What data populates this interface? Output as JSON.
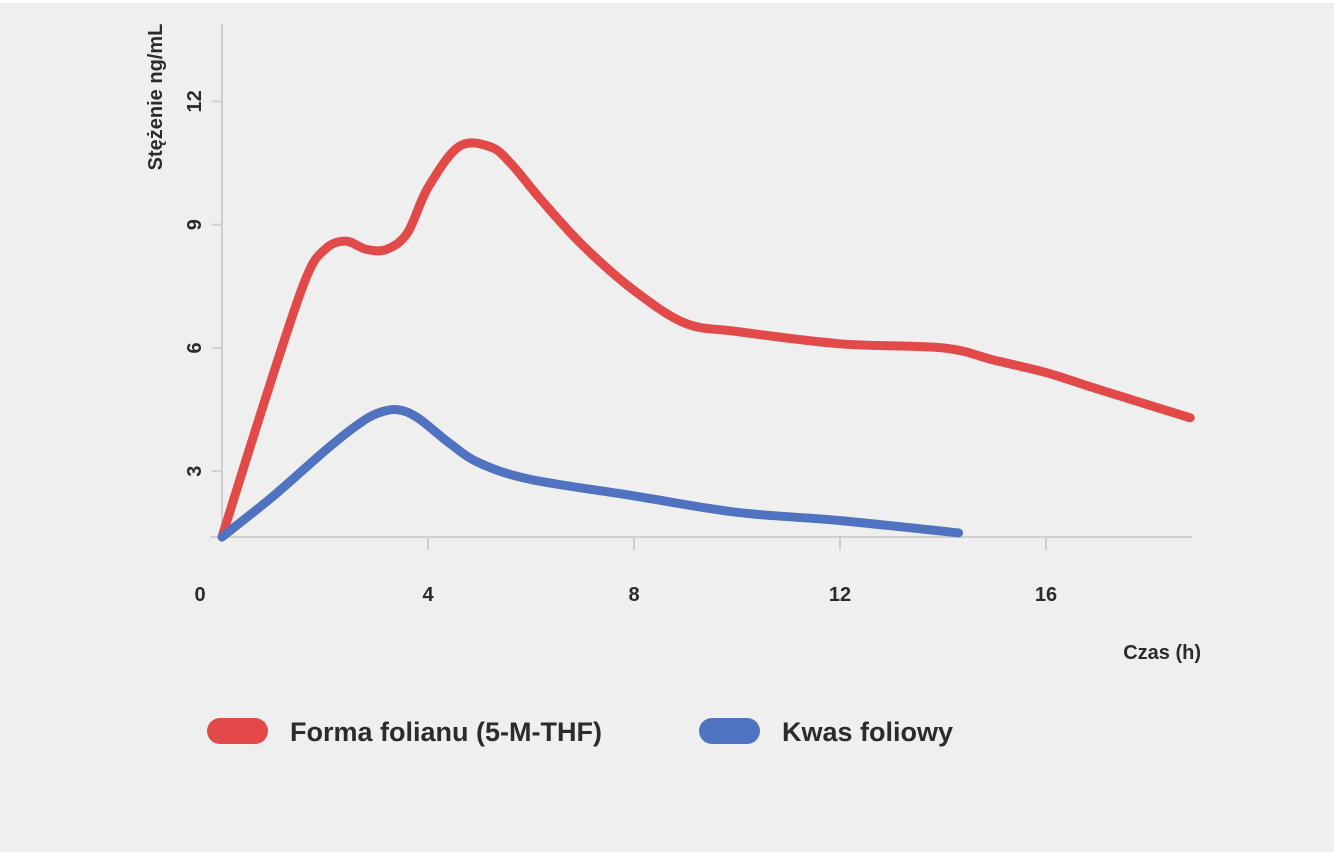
{
  "chart_data": {
    "type": "line",
    "title": "",
    "xlabel": "Czas (h)",
    "ylabel": "Stężenie ng/mL",
    "xlim": [
      0,
      18.9
    ],
    "ylim": [
      1.4,
      13.5
    ],
    "x_ticks": [
      "0",
      "4",
      "8",
      "12",
      "16"
    ],
    "y_ticks": [
      "3",
      "6",
      "9",
      "12"
    ],
    "grid": false,
    "legend_position": "bottom-left",
    "series": [
      {
        "name": "Forma folianu (5-M-THF)",
        "color": "#e14a48",
        "x": [
          0,
          0.8,
          1.6,
          2,
          2.4,
          2.8,
          3.2,
          3.6,
          4,
          4.6,
          5.2,
          5.6,
          6.2,
          7,
          8,
          9,
          10,
          12,
          14,
          15,
          16,
          17,
          18.8
        ],
        "y": [
          1.4,
          4.6,
          7.6,
          8.4,
          8.6,
          8.4,
          8.4,
          8.8,
          9.9,
          10.9,
          10.9,
          10.5,
          9.6,
          8.5,
          7.4,
          6.6,
          6.4,
          6.1,
          6.0,
          5.7,
          5.4,
          5.0,
          4.3
        ]
      },
      {
        "name": "Kwas foliowy",
        "color": "#4f73c0",
        "x": [
          0,
          1,
          2,
          2.6,
          3,
          3.4,
          3.8,
          4.4,
          5,
          6,
          8,
          10,
          12,
          14.3
        ],
        "y": [
          1.4,
          2.4,
          3.5,
          4.1,
          4.4,
          4.5,
          4.3,
          3.7,
          3.2,
          2.8,
          2.4,
          2.0,
          1.8,
          1.5
        ]
      }
    ]
  },
  "colors": {
    "background": "#f0efef",
    "axis": "#cfcfcf",
    "text": "#2b2b2b"
  }
}
